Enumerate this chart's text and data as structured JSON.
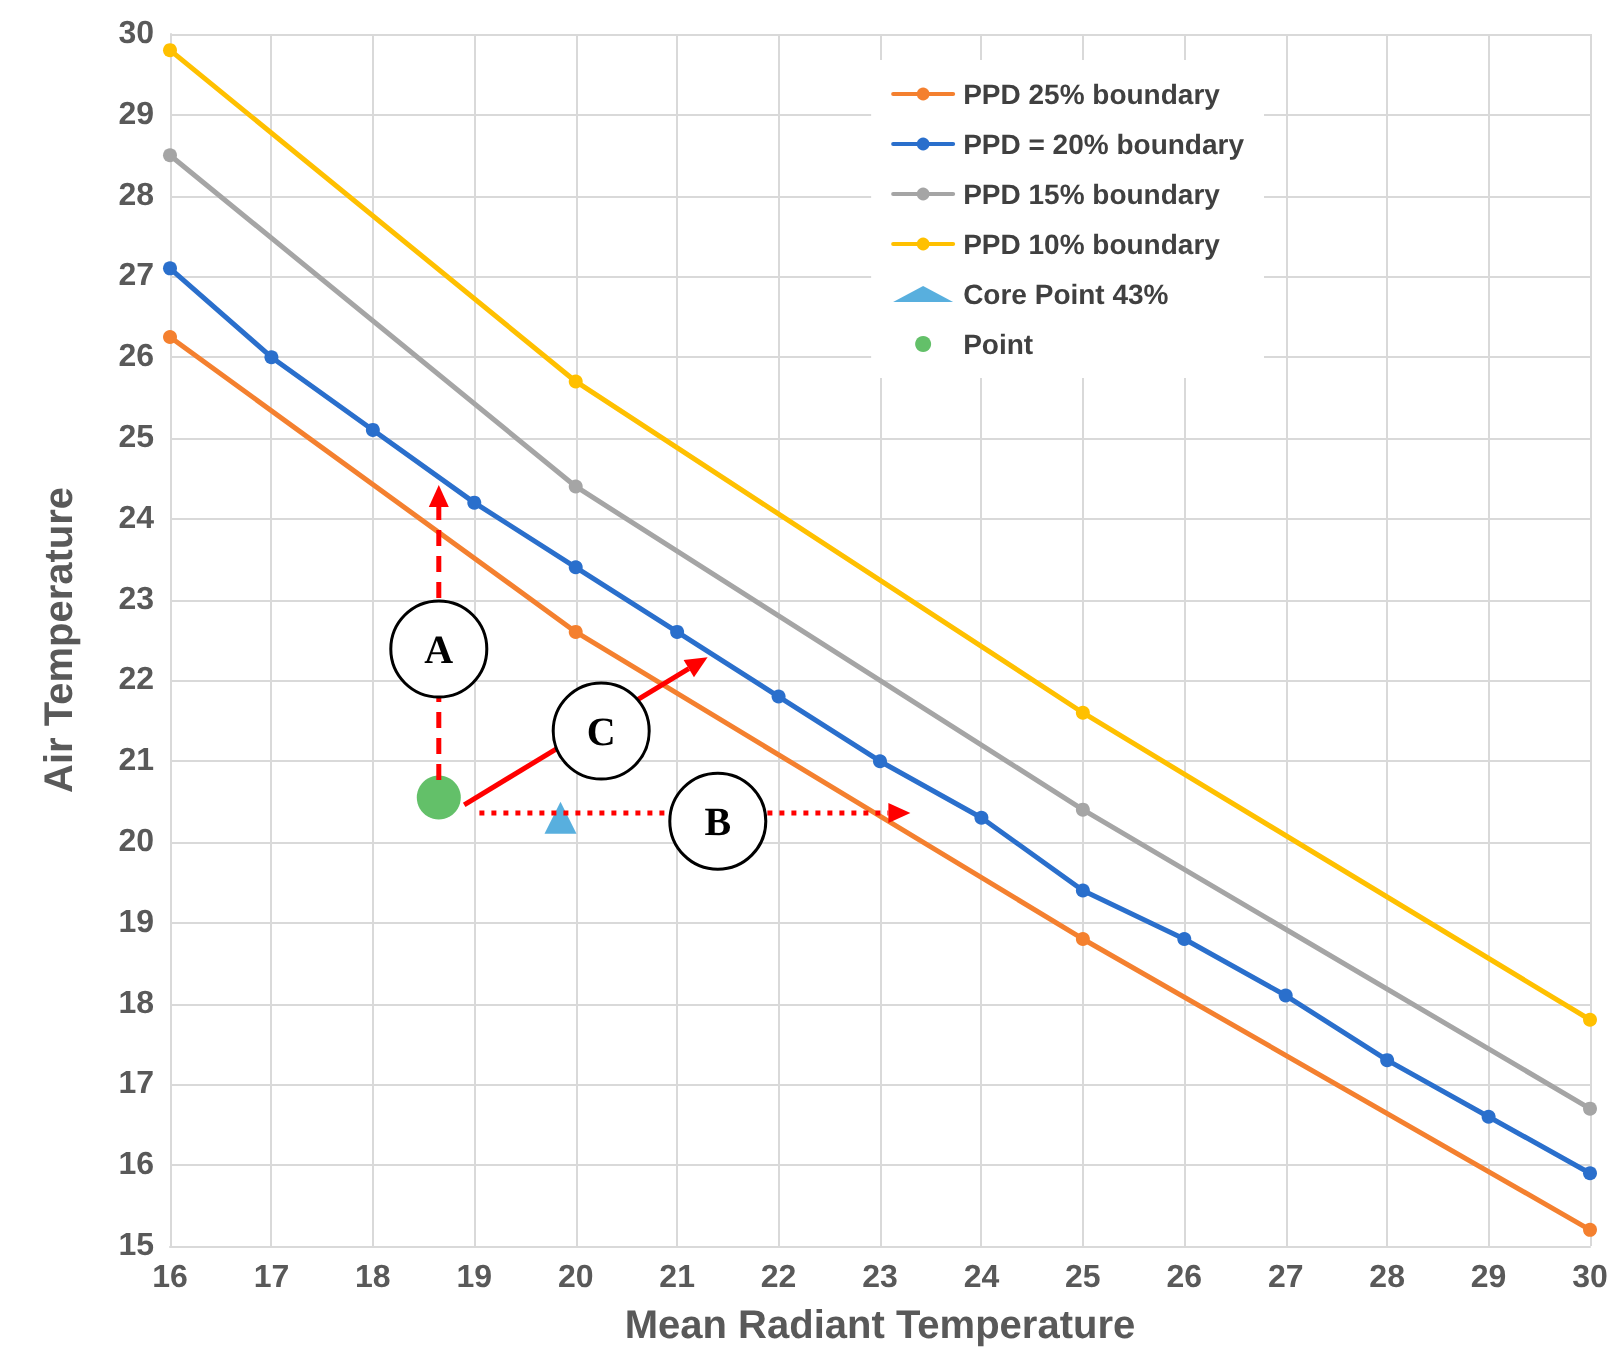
{
  "chart_data": {
    "type": "line",
    "xlabel": "Mean Radiant Temperature",
    "ylabel": "Air Temperature",
    "xlim": [
      16,
      30
    ],
    "ylim": [
      15,
      30
    ],
    "xticks": [
      16,
      17,
      18,
      19,
      20,
      21,
      22,
      23,
      24,
      25,
      26,
      27,
      28,
      29,
      30
    ],
    "yticks": [
      15,
      16,
      17,
      18,
      19,
      20,
      21,
      22,
      23,
      24,
      25,
      26,
      27,
      28,
      29,
      30
    ],
    "grid": true,
    "legend": "top right",
    "marker": "circle",
    "line_style": "solid",
    "series": [
      {
        "name": "PPD 25% boundary",
        "color": "#f4802f",
        "x": [
          16,
          20,
          25,
          30
        ],
        "values": [
          26.25,
          22.6,
          18.8,
          15.2
        ]
      },
      {
        "name": "PPD = 20% boundary",
        "color": "#2a6fcc",
        "x": [
          16,
          17,
          18,
          19,
          20,
          21,
          22,
          23,
          24,
          25,
          26,
          27,
          28,
          29,
          30
        ],
        "values": [
          27.1,
          26.0,
          25.1,
          24.2,
          23.4,
          22.6,
          21.8,
          21.0,
          20.3,
          19.4,
          18.8,
          18.1,
          17.3,
          16.6,
          15.9
        ]
      },
      {
        "name": "PPD 15% boundary",
        "color": "#a5a5a5",
        "x": [
          16,
          20,
          25,
          30
        ],
        "values": [
          28.5,
          24.4,
          20.4,
          16.7
        ]
      },
      {
        "name": "PPD 10% boundary",
        "color": "#ffc000",
        "x": [
          16,
          20,
          25,
          30
        ],
        "values": [
          29.8,
          25.7,
          21.6,
          17.8
        ]
      },
      {
        "name": "Core Point 43%",
        "type": "scatter",
        "marker": "triangle",
        "color": "#2e9bd6",
        "x": [
          19.85
        ],
        "values": [
          20.3
        ]
      },
      {
        "name": "Point",
        "type": "scatter",
        "marker": "circle",
        "color": "#3cb043",
        "x": [
          18.65
        ],
        "values": [
          20.55
        ]
      }
    ],
    "annotations": [
      "A",
      "B",
      "C"
    ]
  }
}
